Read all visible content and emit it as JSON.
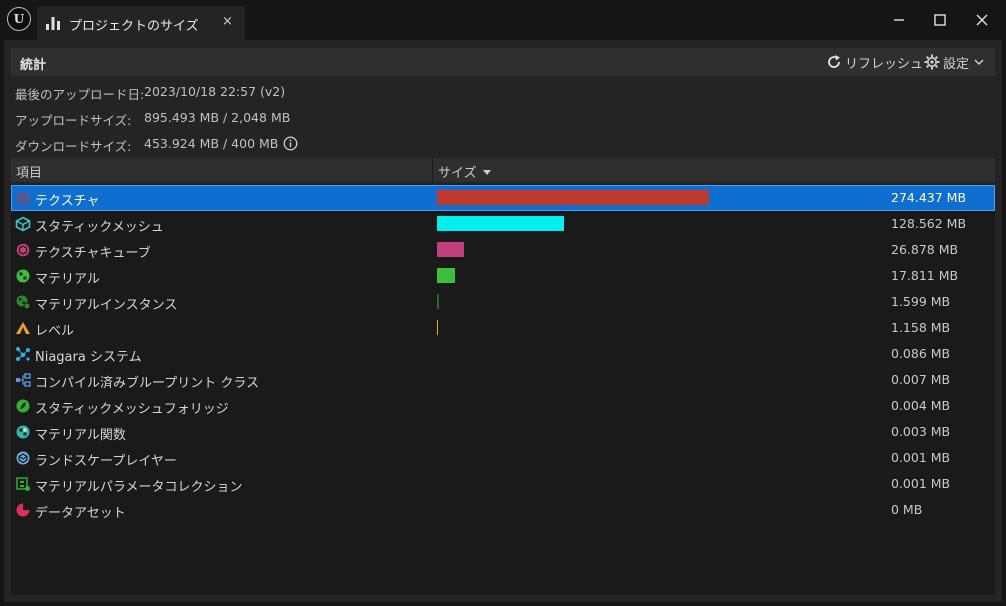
{
  "window": {
    "tab_title": "プロジェクトのサイズ",
    "tab_close": "×"
  },
  "header": {
    "title": "統計",
    "refresh_label": "リフレッシュ",
    "settings_label": "設定"
  },
  "info": {
    "last_upload_label": "最後のアップロード日:",
    "last_upload_value": "2023/10/18 22:57 (v2)",
    "upload_size_label": "アップロードサイズ:",
    "upload_size_value": "895.493 MB / 2,048 MB",
    "download_size_label": "ダウンロードサイズ:",
    "download_size_value": "453.924 MB / 400 MB"
  },
  "table": {
    "col_item": "項目",
    "col_size": "サイズ",
    "rows": [
      {
        "name": "テクスチャ",
        "size": "274.437 MB",
        "value": 274.437,
        "color": "#c0392f",
        "icon": "texture-icon",
        "icon_color": "#c0392f"
      },
      {
        "name": "スタティックメッシュ",
        "size": "128.562 MB",
        "value": 128.562,
        "color": "#00f0f0",
        "icon": "static-mesh-icon",
        "icon_color": "#3cc8c8"
      },
      {
        "name": "テクスチャキューブ",
        "size": "26.878 MB",
        "value": 26.878,
        "color": "#c0407c",
        "icon": "texture-cube-icon",
        "icon_color": "#c0407c"
      },
      {
        "name": "マテリアル",
        "size": "17.811 MB",
        "value": 17.811,
        "color": "#3cc03c",
        "icon": "material-icon",
        "icon_color": "#3cc03c"
      },
      {
        "name": "マテリアルインスタンス",
        "size": "1.599 MB",
        "value": 1.599,
        "color": "#1e6e1e",
        "icon": "material-instance-icon",
        "icon_color": "#2a8a2a"
      },
      {
        "name": "レベル",
        "size": "1.158 MB",
        "value": 1.158,
        "color": "#f0a020",
        "icon": "level-icon",
        "icon_color": "#f0a020"
      },
      {
        "name": "Niagara システム",
        "size": "0.086 MB",
        "value": 0.086,
        "color": "#30a0d0",
        "icon": "niagara-system-icon",
        "icon_color": "#30b0e0"
      },
      {
        "name": "コンパイル済みブループリント クラス",
        "size": "0.007 MB",
        "value": 0.007,
        "color": "#5080d0",
        "icon": "blueprint-class-icon",
        "icon_color": "#6090e0"
      },
      {
        "name": "スタティックメッシュフォリッジ",
        "size": "0.004 MB",
        "value": 0.004,
        "color": "#30a030",
        "icon": "foliage-icon",
        "icon_color": "#30b030"
      },
      {
        "name": "マテリアル関数",
        "size": "0.003 MB",
        "value": 0.003,
        "color": "#30b0a0",
        "icon": "material-function-icon",
        "icon_color": "#30b8a8"
      },
      {
        "name": "ランドスケープレイヤー",
        "size": "0.001 MB",
        "value": 0.001,
        "color": "#5090d0",
        "icon": "landscape-layer-icon",
        "icon_color": "#70a8e0"
      },
      {
        "name": "マテリアルパラメータコレクション",
        "size": "0.001 MB",
        "value": 0.001,
        "color": "#30a030",
        "icon": "parameter-collection-icon",
        "icon_color": "#30b030"
      },
      {
        "name": "データアセット",
        "size": "0 MB",
        "value": 0,
        "color": "#d03060",
        "icon": "data-asset-icon",
        "icon_color": "#d83060"
      }
    ]
  }
}
